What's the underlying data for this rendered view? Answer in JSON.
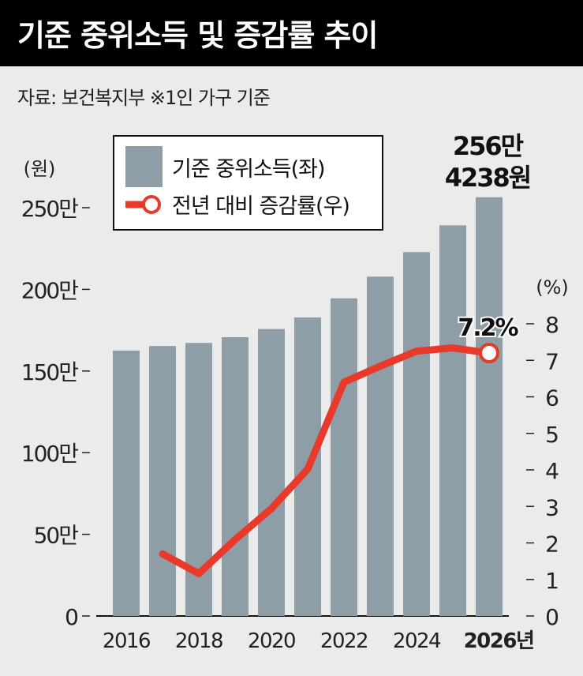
{
  "header": {
    "title": "기준 중위소득 및 증감률 추이",
    "source": "자료: 보건복지부  ※1인 가구 기준"
  },
  "colors": {
    "bar": "#8e9ea6",
    "line": "#e8392b",
    "background": "#ebebeb"
  },
  "chart_data": {
    "type": "bar+line",
    "title": "기준 중위소득 및 증감률 추이",
    "x": [
      2016,
      2017,
      2018,
      2019,
      2020,
      2021,
      2022,
      2023,
      2024,
      2025,
      2026
    ],
    "x_tick_labels": [
      "2016",
      "2018",
      "2020",
      "2022",
      "2024",
      "2026년"
    ],
    "series": [
      {
        "name": "기준 중위소득(좌)",
        "type": "bar",
        "axis": "left",
        "unit": "만원",
        "values": [
          162.5,
          165.3,
          167.2,
          170.7,
          175.7,
          182.8,
          194.5,
          207.8,
          222.8,
          239.2,
          256.4
        ]
      },
      {
        "name": "전년 대비 증감률(우)",
        "type": "line",
        "axis": "right",
        "unit": "%",
        "values": [
          null,
          1.7,
          1.16,
          2.09,
          2.94,
          4.02,
          6.4,
          6.84,
          7.25,
          7.34,
          7.2
        ]
      }
    ],
    "left_axis": {
      "label": "(원)",
      "ylim": [
        0,
        250
      ],
      "ticks": [
        0,
        50,
        100,
        150,
        200,
        250
      ],
      "tick_labels": [
        "0",
        "50만",
        "100만",
        "150만",
        "200만",
        "250만"
      ]
    },
    "right_axis": {
      "label": "(%)",
      "ylim": [
        0,
        8
      ],
      "ticks": [
        0,
        1,
        2,
        3,
        4,
        5,
        6,
        7,
        8
      ],
      "tick_labels": [
        "0",
        "1",
        "2",
        "3",
        "4",
        "5",
        "6",
        "7",
        "8"
      ]
    },
    "annotations": {
      "bar_last_line1": "256만",
      "bar_last_line2": "4238원",
      "line_last": "7.2%"
    },
    "legend": {
      "placement": "top-left",
      "items": [
        "기준 중위소득(좌)",
        "전년 대비 증감률(우)"
      ]
    }
  }
}
